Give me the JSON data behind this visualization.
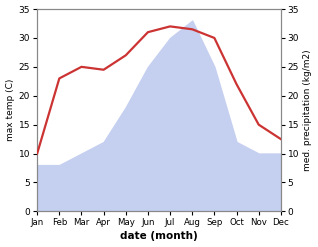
{
  "months": [
    "Jan",
    "Feb",
    "Mar",
    "Apr",
    "May",
    "Jun",
    "Jul",
    "Aug",
    "Sep",
    "Oct",
    "Nov",
    "Dec"
  ],
  "temperature": [
    10,
    23,
    25,
    24.5,
    27,
    31,
    32,
    31.5,
    30,
    22,
    15,
    12.5
  ],
  "precipitation": [
    8,
    8,
    10,
    12,
    18,
    25,
    30,
    33,
    25,
    12,
    10,
    10
  ],
  "temp_color": "#cc3333",
  "precip_fill_color": "#c5cff0",
  "xlabel": "date (month)",
  "ylabel_left": "max temp (C)",
  "ylabel_right": "med. precipitation (kg/m2)",
  "ylim": [
    0,
    35
  ],
  "yticks": [
    0,
    5,
    10,
    15,
    20,
    25,
    30,
    35
  ],
  "bg_color": "#ffffff",
  "spine_color": "#888888"
}
